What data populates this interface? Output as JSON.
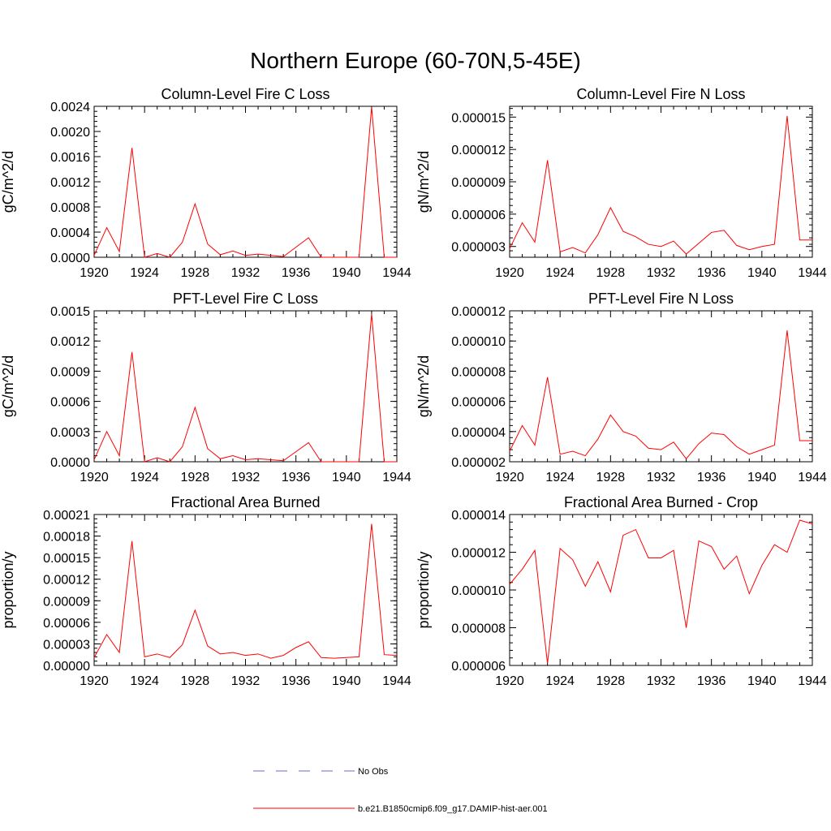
{
  "figure": {
    "title": "Northern Europe (60-70N,5-45E)"
  },
  "colors": {
    "model": "#ff0000",
    "obs": "#6a6acd",
    "axis": "#000000"
  },
  "legend": {
    "entries": [
      {
        "label": "No Obs",
        "style": "dashed",
        "color": "#6a6acd"
      },
      {
        "label": "b.e21.B1850cmip6.f09_g17.DAMIP-hist-aer.001",
        "style": "solid",
        "color": "#ff0000"
      }
    ]
  },
  "chart_data": [
    {
      "type": "line",
      "title": "Column-Level Fire C Loss",
      "ylabel": "gC/m^2/d",
      "xlim": [
        1920,
        1944
      ],
      "ylim": [
        0,
        0.0024
      ],
      "xticks": [
        1920,
        1924,
        1928,
        1932,
        1936,
        1940,
        1944
      ],
      "yticks": [
        "0.0000",
        "0.0004",
        "0.0008",
        "0.0012",
        "0.0016",
        "0.0020",
        "0.0024"
      ],
      "x": [
        1920,
        1921,
        1922,
        1923,
        1924,
        1925,
        1926,
        1927,
        1928,
        1929,
        1930,
        1931,
        1932,
        1933,
        1934,
        1935,
        1936,
        1937,
        1938,
        1939,
        1940,
        1941,
        1942,
        1943,
        1944
      ],
      "series": [
        {
          "values": [
            3e-05,
            0.00047,
            9e-05,
            0.00174,
            0.0,
            6e-05,
            0.0,
            0.00024,
            0.00085,
            0.00021,
            4e-05,
            0.0001,
            3e-05,
            5e-05,
            3e-05,
            1e-05,
            0.00016,
            0.00031,
            0.0,
            0.0,
            0.0,
            0.0,
            0.00239,
            0.0,
            0.0
          ]
        }
      ]
    },
    {
      "type": "line",
      "title": "Column-Level Fire N Loss",
      "ylabel": "gN/m^2/d",
      "xlim": [
        1920,
        1944
      ],
      "ylim": [
        2e-06,
        1.6e-05
      ],
      "xticks": [
        1920,
        1924,
        1928,
        1932,
        1936,
        1940,
        1944
      ],
      "yticks": [
        "0.000003",
        "0.000006",
        "0.000009",
        "0.000012",
        "0.000015"
      ],
      "x": [
        1920,
        1921,
        1922,
        1923,
        1924,
        1925,
        1926,
        1927,
        1928,
        1929,
        1930,
        1931,
        1932,
        1933,
        1934,
        1935,
        1936,
        1937,
        1938,
        1939,
        1940,
        1941,
        1942,
        1943,
        1944
      ],
      "series": [
        {
          "values": [
            2.8e-06,
            5.2e-06,
            3.4e-06,
            1.1e-05,
            2.5e-06,
            2.9e-06,
            2.4e-06,
            4.1e-06,
            6.6e-06,
            4.4e-06,
            3.9e-06,
            3.2e-06,
            3e-06,
            3.5e-06,
            2.3e-06,
            3.3e-06,
            4.3e-06,
            4.5e-06,
            3.1e-06,
            2.7e-06,
            3e-06,
            3.2e-06,
            1.51e-05,
            3.6e-06,
            3.6e-06
          ]
        }
      ]
    },
    {
      "type": "line",
      "title": "PFT-Level Fire C Loss",
      "ylabel": "gC/m^2/d",
      "xlim": [
        1920,
        1944
      ],
      "ylim": [
        0,
        0.0015
      ],
      "xticks": [
        1920,
        1924,
        1928,
        1932,
        1936,
        1940,
        1944
      ],
      "yticks": [
        "0.0000",
        "0.0003",
        "0.0006",
        "0.0009",
        "0.0012",
        "0.0015"
      ],
      "x": [
        1920,
        1921,
        1922,
        1923,
        1924,
        1925,
        1926,
        1927,
        1928,
        1929,
        1930,
        1931,
        1932,
        1933,
        1934,
        1935,
        1936,
        1937,
        1938,
        1939,
        1940,
        1941,
        1942,
        1943,
        1944
      ],
      "series": [
        {
          "values": [
            2e-05,
            0.0003,
            6e-05,
            0.00109,
            0.0,
            4e-05,
            0.0,
            0.00015,
            0.00054,
            0.00013,
            3e-05,
            6e-05,
            2e-05,
            3e-05,
            2e-05,
            1e-05,
            0.0001,
            0.00019,
            0.0,
            0.0,
            0.0,
            0.0,
            0.00147,
            0.0,
            0.0
          ]
        }
      ]
    },
    {
      "type": "line",
      "title": "PFT-Level Fire N Loss",
      "ylabel": "gN/m^2/d",
      "xlim": [
        1920,
        1944
      ],
      "ylim": [
        2e-06,
        1.2e-05
      ],
      "xticks": [
        1920,
        1924,
        1928,
        1932,
        1936,
        1940,
        1944
      ],
      "yticks": [
        "0.000002",
        "0.000004",
        "0.000006",
        "0.000008",
        "0.000010",
        "0.000012"
      ],
      "x": [
        1920,
        1921,
        1922,
        1923,
        1924,
        1925,
        1926,
        1927,
        1928,
        1929,
        1930,
        1931,
        1932,
        1933,
        1934,
        1935,
        1936,
        1937,
        1938,
        1939,
        1940,
        1941,
        1942,
        1943,
        1944
      ],
      "series": [
        {
          "values": [
            2.7e-06,
            4.4e-06,
            3.1e-06,
            7.6e-06,
            2.5e-06,
            2.7e-06,
            2.4e-06,
            3.5e-06,
            5.1e-06,
            4e-06,
            3.7e-06,
            2.9e-06,
            2.8e-06,
            3.3e-06,
            2.2e-06,
            3.2e-06,
            3.9e-06,
            3.8e-06,
            3e-06,
            2.5e-06,
            2.8e-06,
            3.1e-06,
            1.07e-05,
            3.4e-06,
            3.4e-06
          ]
        }
      ]
    },
    {
      "type": "line",
      "title": "Fractional Area Burned",
      "ylabel": "proportion/y",
      "xlim": [
        1920,
        1944
      ],
      "ylim": [
        0,
        0.00021
      ],
      "xticks": [
        1920,
        1924,
        1928,
        1932,
        1936,
        1940,
        1944
      ],
      "yticks": [
        "0.00000",
        "0.00003",
        "0.00006",
        "0.00009",
        "0.00012",
        "0.00015",
        "0.00018",
        "0.00021"
      ],
      "x": [
        1920,
        1921,
        1922,
        1923,
        1924,
        1925,
        1926,
        1927,
        1928,
        1929,
        1930,
        1931,
        1932,
        1933,
        1934,
        1935,
        1936,
        1937,
        1938,
        1939,
        1940,
        1941,
        1942,
        1943,
        1944
      ],
      "series": [
        {
          "values": [
            1.1e-05,
            4.3e-05,
            1.8e-05,
            0.000173,
            1.2e-05,
            1.6e-05,
            1.1e-05,
            2.9e-05,
            7.7e-05,
            2.7e-05,
            1.6e-05,
            1.8e-05,
            1.4e-05,
            1.6e-05,
            1e-05,
            1.4e-05,
            2.5e-05,
            3.3e-05,
            1.1e-05,
            1e-05,
            1.1e-05,
            1.2e-05,
            0.000197,
            1.5e-05,
            1.4e-05
          ]
        }
      ]
    },
    {
      "type": "line",
      "title": "Fractional Area Burned - Crop",
      "ylabel": "proportion/y",
      "xlim": [
        1920,
        1944
      ],
      "ylim": [
        6e-06,
        1.4e-05
      ],
      "xticks": [
        1920,
        1924,
        1928,
        1932,
        1936,
        1940,
        1944
      ],
      "yticks": [
        "0.000006",
        "0.000008",
        "0.000010",
        "0.000012",
        "0.000014"
      ],
      "x": [
        1920,
        1921,
        1922,
        1923,
        1924,
        1925,
        1926,
        1927,
        1928,
        1929,
        1930,
        1931,
        1932,
        1933,
        1934,
        1935,
        1936,
        1937,
        1938,
        1939,
        1940,
        1941,
        1942,
        1943,
        1944
      ],
      "series": [
        {
          "values": [
            1.03e-05,
            1.11e-05,
            1.21e-05,
            6.1e-06,
            1.22e-05,
            1.16e-05,
            1.02e-05,
            1.15e-05,
            9.9e-06,
            1.29e-05,
            1.32e-05,
            1.17e-05,
            1.17e-05,
            1.21e-05,
            8e-06,
            1.26e-05,
            1.23e-05,
            1.11e-05,
            1.18e-05,
            9.8e-06,
            1.13e-05,
            1.24e-05,
            1.2e-05,
            1.37e-05,
            1.35e-05
          ]
        }
      ]
    }
  ]
}
